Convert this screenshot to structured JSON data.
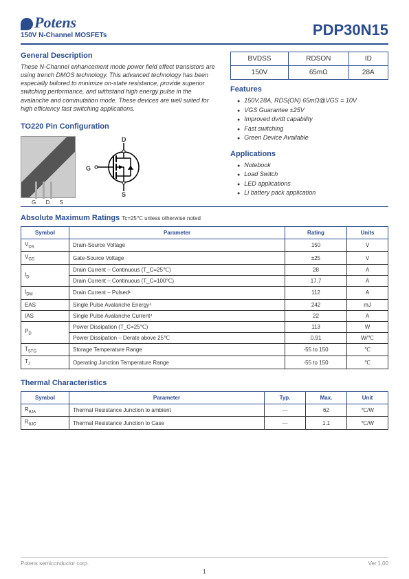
{
  "header": {
    "logo_text": "Potens",
    "subtitle": "150V N-Channel MOSFETs",
    "part_number": "PDP30N15"
  },
  "general_description": {
    "title": "General Description",
    "text": "These N-Channel enhancement mode power field effect transistors are using trench DMOS technology. This advanced technology has been especially tailored to minimize on-state resistance, provide superior switching performance, and withstand high energy pulse in the avalanche and commutation mode. These devices are well suited for high efficiency fast switching applications."
  },
  "spec_box": {
    "headers": [
      "BVDSS",
      "RDSON",
      "ID"
    ],
    "values": [
      "150V",
      "65mΩ",
      "28A"
    ]
  },
  "features": {
    "title": "Features",
    "items": [
      "150V,28A, RDS(ON) 65mΩ@VGS = 10V",
      "VGS Guarantee ±25V",
      "Improved dv/dt capability",
      "Fast switching",
      "Green Device Available"
    ]
  },
  "applications": {
    "title": "Applications",
    "items": [
      "Notebook",
      "Load Switch",
      "LED applications",
      "Li battery pack application"
    ]
  },
  "pin_config": {
    "title": "TO220 Pin Configuration",
    "pins": {
      "d": "D",
      "g": "G",
      "s": "S"
    }
  },
  "abs_max": {
    "title": "Absolute Maximum Ratings",
    "note": "Tc=25℃ unless otherwise noted",
    "columns": [
      "Symbol",
      "Parameter",
      "Rating",
      "Units"
    ],
    "rows": [
      [
        "V_DS",
        "Drain-Source Voltage",
        "150",
        "V"
      ],
      [
        "V_GS",
        "Gate-Source Voltage",
        "±25",
        "V"
      ],
      [
        "I_D",
        "Drain Current – Continuous (T_C=25℃)",
        "28",
        "A"
      ],
      [
        "",
        "Drain Current – Continuous (T_C=100℃)",
        "17.7",
        "A"
      ],
      [
        "I_DM",
        "Drain Current – Pulsed¹",
        "112",
        "A"
      ],
      [
        "EAS",
        "Single Pulse Avalanche Energy⁴",
        "242",
        "mJ"
      ],
      [
        "IAS",
        "Single Pulse Avalanche Current⁴",
        "22",
        "A"
      ],
      [
        "P_D",
        "Power Dissipation (T_C=25℃)",
        "113",
        "W"
      ],
      [
        "",
        "Power Dissipation – Derate above 25℃",
        "0.91",
        "W/℃"
      ],
      [
        "T_STG",
        "Storage Temperature Range",
        "-55 to 150",
        "℃"
      ],
      [
        "T_J",
        "Operating Junction Temperature Range",
        "-55 to 150",
        "℃"
      ]
    ]
  },
  "thermal": {
    "title": "Thermal Characteristics",
    "columns": [
      "Symbol",
      "Parameter",
      "Typ.",
      "Max.",
      "Unit"
    ],
    "rows": [
      [
        "R_θJA",
        "Thermal Resistance Junction to ambient",
        "---",
        "62",
        "℃/W"
      ],
      [
        "R_θJC",
        "Thermal Resistance Junction to Case",
        "---",
        "1.1",
        "℃/W"
      ]
    ]
  },
  "footer": {
    "left": "Potens semiconductor corp.",
    "right": "Ver.1.00",
    "page": "1"
  },
  "colors": {
    "primary": "#2a4b8d",
    "text": "#333333",
    "border": "#2a4b8d"
  }
}
